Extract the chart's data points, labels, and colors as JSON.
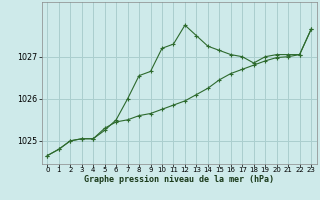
{
  "title": "Graphe pression niveau de la mer (hPa)",
  "background_color": "#ceeaea",
  "grid_color": "#aacece",
  "line_color": "#2d6a2d",
  "marker_color": "#2d6a2d",
  "xlim": [
    -0.5,
    23.5
  ],
  "ylim": [
    1024.45,
    1028.3
  ],
  "yticks": [
    1025,
    1026,
    1027
  ],
  "xticks": [
    0,
    1,
    2,
    3,
    4,
    5,
    6,
    7,
    8,
    9,
    10,
    11,
    12,
    13,
    14,
    15,
    16,
    17,
    18,
    19,
    20,
    21,
    22,
    23
  ],
  "series1_x": [
    0,
    1,
    2,
    3,
    4,
    5,
    6,
    7,
    8,
    9,
    10,
    11,
    12,
    13,
    14,
    15,
    16,
    17,
    18,
    19,
    20,
    21,
    22,
    23
  ],
  "series1_y": [
    1024.65,
    1024.8,
    1025.0,
    1025.05,
    1025.05,
    1025.25,
    1025.5,
    1026.0,
    1026.55,
    1026.65,
    1027.2,
    1027.3,
    1027.75,
    1027.5,
    1027.25,
    1027.15,
    1027.05,
    1027.0,
    1026.85,
    1027.0,
    1027.05,
    1027.05,
    1027.05,
    1027.65
  ],
  "series2_x": [
    0,
    1,
    2,
    3,
    4,
    5,
    6,
    7,
    8,
    9,
    10,
    11,
    12,
    13,
    14,
    15,
    16,
    17,
    18,
    19,
    20,
    21,
    22,
    23
  ],
  "series2_y": [
    1024.65,
    1024.8,
    1025.0,
    1025.05,
    1025.05,
    1025.3,
    1025.45,
    1025.5,
    1025.6,
    1025.65,
    1025.75,
    1025.85,
    1025.95,
    1026.1,
    1026.25,
    1026.45,
    1026.6,
    1026.7,
    1026.8,
    1026.9,
    1026.98,
    1027.0,
    1027.05,
    1027.65
  ],
  "xlabel_fontsize": 6.0,
  "ytick_fontsize": 5.8,
  "xtick_fontsize": 5.0
}
